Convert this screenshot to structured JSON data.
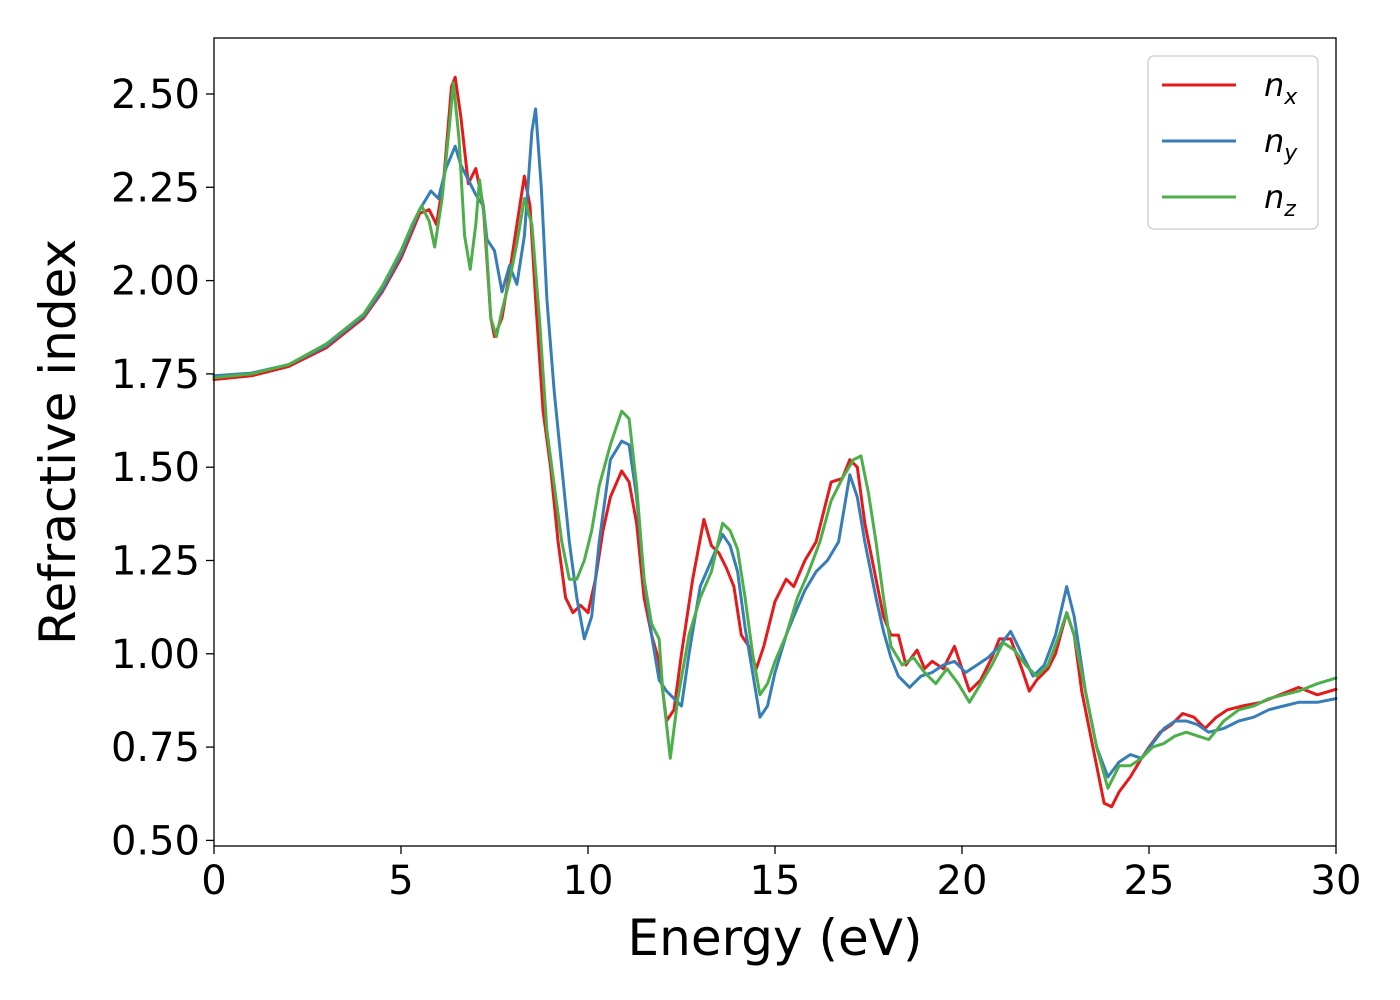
{
  "chart_data": {
    "type": "line",
    "title": "",
    "xlabel": "Energy (eV)",
    "ylabel": "Refractive index",
    "xlim": [
      0,
      30
    ],
    "ylim": [
      0.485,
      2.65
    ],
    "xticks": [
      "0",
      "5",
      "10",
      "15",
      "20",
      "25",
      "30"
    ],
    "yticks": [
      "0.50",
      "0.75",
      "1.00",
      "1.25",
      "1.50",
      "1.75",
      "2.00",
      "2.25",
      "2.50"
    ],
    "grid": false,
    "legend_position": "top-right",
    "series": [
      {
        "name": "n",
        "subscript": "x",
        "color": "#e41a1c",
        "points": [
          [
            0,
            1.735
          ],
          [
            1,
            1.745
          ],
          [
            2,
            1.77
          ],
          [
            3,
            1.82
          ],
          [
            4,
            1.9
          ],
          [
            4.5,
            1.97
          ],
          [
            5,
            2.06
          ],
          [
            5.5,
            2.18
          ],
          [
            5.75,
            2.19
          ],
          [
            5.95,
            2.15
          ],
          [
            6.15,
            2.28
          ],
          [
            6.35,
            2.52
          ],
          [
            6.45,
            2.545
          ],
          [
            6.6,
            2.44
          ],
          [
            6.8,
            2.26
          ],
          [
            7.0,
            2.3
          ],
          [
            7.2,
            2.2
          ],
          [
            7.4,
            1.9
          ],
          [
            7.5,
            1.85
          ],
          [
            7.7,
            1.9
          ],
          [
            7.9,
            2.02
          ],
          [
            8.1,
            2.15
          ],
          [
            8.3,
            2.28
          ],
          [
            8.45,
            2.2
          ],
          [
            8.6,
            1.95
          ],
          [
            8.8,
            1.65
          ],
          [
            9.0,
            1.5
          ],
          [
            9.2,
            1.3
          ],
          [
            9.4,
            1.15
          ],
          [
            9.6,
            1.11
          ],
          [
            9.8,
            1.13
          ],
          [
            10.0,
            1.11
          ],
          [
            10.2,
            1.2
          ],
          [
            10.4,
            1.33
          ],
          [
            10.6,
            1.42
          ],
          [
            10.9,
            1.49
          ],
          [
            11.1,
            1.46
          ],
          [
            11.3,
            1.35
          ],
          [
            11.5,
            1.15
          ],
          [
            11.7,
            1.05
          ],
          [
            11.9,
            0.98
          ],
          [
            12.1,
            0.82
          ],
          [
            12.3,
            0.85
          ],
          [
            12.5,
            1.0
          ],
          [
            12.8,
            1.2
          ],
          [
            13.1,
            1.36
          ],
          [
            13.3,
            1.29
          ],
          [
            13.5,
            1.27
          ],
          [
            13.7,
            1.23
          ],
          [
            13.9,
            1.18
          ],
          [
            14.1,
            1.05
          ],
          [
            14.3,
            1.02
          ],
          [
            14.5,
            0.96
          ],
          [
            14.7,
            1.02
          ],
          [
            15.0,
            1.14
          ],
          [
            15.3,
            1.2
          ],
          [
            15.5,
            1.18
          ],
          [
            15.8,
            1.25
          ],
          [
            16.1,
            1.3
          ],
          [
            16.5,
            1.46
          ],
          [
            16.8,
            1.47
          ],
          [
            17.0,
            1.52
          ],
          [
            17.2,
            1.5
          ],
          [
            17.4,
            1.35
          ],
          [
            17.7,
            1.2
          ],
          [
            17.9,
            1.1
          ],
          [
            18.1,
            1.05
          ],
          [
            18.3,
            1.05
          ],
          [
            18.5,
            0.97
          ],
          [
            18.8,
            1.01
          ],
          [
            19.0,
            0.96
          ],
          [
            19.2,
            0.98
          ],
          [
            19.5,
            0.96
          ],
          [
            19.8,
            1.02
          ],
          [
            20.0,
            0.96
          ],
          [
            20.2,
            0.9
          ],
          [
            20.5,
            0.93
          ],
          [
            20.8,
            0.99
          ],
          [
            21.0,
            1.04
          ],
          [
            21.3,
            1.04
          ],
          [
            21.6,
            0.96
          ],
          [
            21.8,
            0.9
          ],
          [
            22.0,
            0.93
          ],
          [
            22.3,
            0.96
          ],
          [
            22.5,
            1.0
          ],
          [
            22.8,
            1.11
          ],
          [
            23.0,
            1.05
          ],
          [
            23.2,
            0.9
          ],
          [
            23.5,
            0.75
          ],
          [
            23.8,
            0.6
          ],
          [
            24.0,
            0.59
          ],
          [
            24.2,
            0.63
          ],
          [
            24.5,
            0.67
          ],
          [
            24.8,
            0.72
          ],
          [
            25.0,
            0.75
          ],
          [
            25.3,
            0.79
          ],
          [
            25.6,
            0.81
          ],
          [
            25.9,
            0.84
          ],
          [
            26.2,
            0.83
          ],
          [
            26.5,
            0.8
          ],
          [
            26.8,
            0.83
          ],
          [
            27.1,
            0.85
          ],
          [
            27.5,
            0.86
          ],
          [
            28.0,
            0.87
          ],
          [
            28.5,
            0.89
          ],
          [
            29.0,
            0.91
          ],
          [
            29.5,
            0.89
          ],
          [
            30.0,
            0.905
          ]
        ]
      },
      {
        "name": "n",
        "subscript": "y",
        "color": "#377eb8",
        "points": [
          [
            0,
            1.745
          ],
          [
            1,
            1.752
          ],
          [
            2,
            1.775
          ],
          [
            3,
            1.825
          ],
          [
            4,
            1.905
          ],
          [
            4.5,
            1.975
          ],
          [
            5,
            2.07
          ],
          [
            5.5,
            2.19
          ],
          [
            5.8,
            2.24
          ],
          [
            6.0,
            2.22
          ],
          [
            6.2,
            2.3
          ],
          [
            6.45,
            2.36
          ],
          [
            6.6,
            2.31
          ],
          [
            6.8,
            2.27
          ],
          [
            7.0,
            2.23
          ],
          [
            7.2,
            2.2
          ],
          [
            7.3,
            2.11
          ],
          [
            7.5,
            2.08
          ],
          [
            7.7,
            1.97
          ],
          [
            7.9,
            2.04
          ],
          [
            8.1,
            1.99
          ],
          [
            8.3,
            2.12
          ],
          [
            8.5,
            2.4
          ],
          [
            8.6,
            2.46
          ],
          [
            8.75,
            2.25
          ],
          [
            8.9,
            1.95
          ],
          [
            9.1,
            1.7
          ],
          [
            9.3,
            1.5
          ],
          [
            9.5,
            1.3
          ],
          [
            9.7,
            1.15
          ],
          [
            9.9,
            1.04
          ],
          [
            10.1,
            1.1
          ],
          [
            10.3,
            1.3
          ],
          [
            10.6,
            1.52
          ],
          [
            10.9,
            1.57
          ],
          [
            11.1,
            1.56
          ],
          [
            11.3,
            1.42
          ],
          [
            11.5,
            1.2
          ],
          [
            11.7,
            1.05
          ],
          [
            11.9,
            0.93
          ],
          [
            12.1,
            0.9
          ],
          [
            12.3,
            0.88
          ],
          [
            12.5,
            0.86
          ],
          [
            12.7,
            1.0
          ],
          [
            13.0,
            1.18
          ],
          [
            13.3,
            1.25
          ],
          [
            13.6,
            1.32
          ],
          [
            13.8,
            1.29
          ],
          [
            14.0,
            1.22
          ],
          [
            14.2,
            1.07
          ],
          [
            14.4,
            0.95
          ],
          [
            14.6,
            0.83
          ],
          [
            14.8,
            0.86
          ],
          [
            15.0,
            0.95
          ],
          [
            15.3,
            1.05
          ],
          [
            15.5,
            1.1
          ],
          [
            15.8,
            1.17
          ],
          [
            16.1,
            1.22
          ],
          [
            16.4,
            1.25
          ],
          [
            16.7,
            1.3
          ],
          [
            17.0,
            1.48
          ],
          [
            17.2,
            1.42
          ],
          [
            17.4,
            1.3
          ],
          [
            17.7,
            1.15
          ],
          [
            17.9,
            1.06
          ],
          [
            18.1,
            0.99
          ],
          [
            18.3,
            0.94
          ],
          [
            18.6,
            0.91
          ],
          [
            18.9,
            0.94
          ],
          [
            19.2,
            0.95
          ],
          [
            19.5,
            0.97
          ],
          [
            19.8,
            0.98
          ],
          [
            20.1,
            0.95
          ],
          [
            20.4,
            0.97
          ],
          [
            20.7,
            0.99
          ],
          [
            21.0,
            1.02
          ],
          [
            21.3,
            1.06
          ],
          [
            21.6,
            1.0
          ],
          [
            21.9,
            0.94
          ],
          [
            22.2,
            0.97
          ],
          [
            22.5,
            1.05
          ],
          [
            22.8,
            1.18
          ],
          [
            23.0,
            1.1
          ],
          [
            23.3,
            0.9
          ],
          [
            23.6,
            0.75
          ],
          [
            23.9,
            0.67
          ],
          [
            24.2,
            0.71
          ],
          [
            24.5,
            0.73
          ],
          [
            24.8,
            0.72
          ],
          [
            25.1,
            0.76
          ],
          [
            25.4,
            0.8
          ],
          [
            25.7,
            0.82
          ],
          [
            26.0,
            0.82
          ],
          [
            26.3,
            0.81
          ],
          [
            26.6,
            0.79
          ],
          [
            27.0,
            0.8
          ],
          [
            27.4,
            0.82
          ],
          [
            27.8,
            0.83
          ],
          [
            28.2,
            0.85
          ],
          [
            28.6,
            0.86
          ],
          [
            29.0,
            0.87
          ],
          [
            29.5,
            0.87
          ],
          [
            30.0,
            0.88
          ]
        ]
      },
      {
        "name": "n",
        "subscript": "z",
        "color": "#4daf4a",
        "points": [
          [
            0,
            1.74
          ],
          [
            1,
            1.75
          ],
          [
            2,
            1.775
          ],
          [
            3,
            1.83
          ],
          [
            4,
            1.91
          ],
          [
            4.5,
            1.985
          ],
          [
            5,
            2.08
          ],
          [
            5.3,
            2.15
          ],
          [
            5.55,
            2.2
          ],
          [
            5.75,
            2.16
          ],
          [
            5.9,
            2.09
          ],
          [
            6.1,
            2.22
          ],
          [
            6.3,
            2.42
          ],
          [
            6.4,
            2.53
          ],
          [
            6.55,
            2.38
          ],
          [
            6.7,
            2.12
          ],
          [
            6.85,
            2.03
          ],
          [
            7.0,
            2.15
          ],
          [
            7.1,
            2.27
          ],
          [
            7.25,
            2.15
          ],
          [
            7.4,
            1.9
          ],
          [
            7.55,
            1.85
          ],
          [
            7.7,
            1.92
          ],
          [
            7.9,
            2.0
          ],
          [
            8.1,
            2.1
          ],
          [
            8.3,
            2.22
          ],
          [
            8.5,
            2.15
          ],
          [
            8.7,
            1.9
          ],
          [
            8.9,
            1.6
          ],
          [
            9.1,
            1.45
          ],
          [
            9.3,
            1.3
          ],
          [
            9.5,
            1.2
          ],
          [
            9.7,
            1.2
          ],
          [
            9.9,
            1.25
          ],
          [
            10.1,
            1.33
          ],
          [
            10.3,
            1.45
          ],
          [
            10.6,
            1.56
          ],
          [
            10.9,
            1.65
          ],
          [
            11.1,
            1.63
          ],
          [
            11.3,
            1.45
          ],
          [
            11.5,
            1.2
          ],
          [
            11.7,
            1.08
          ],
          [
            11.9,
            1.04
          ],
          [
            12.0,
            0.9
          ],
          [
            12.2,
            0.72
          ],
          [
            12.4,
            0.88
          ],
          [
            12.7,
            1.05
          ],
          [
            13.0,
            1.15
          ],
          [
            13.3,
            1.22
          ],
          [
            13.6,
            1.35
          ],
          [
            13.8,
            1.33
          ],
          [
            14.0,
            1.28
          ],
          [
            14.2,
            1.15
          ],
          [
            14.4,
            1.0
          ],
          [
            14.6,
            0.89
          ],
          [
            14.8,
            0.92
          ],
          [
            15.0,
            0.98
          ],
          [
            15.3,
            1.05
          ],
          [
            15.6,
            1.15
          ],
          [
            15.9,
            1.22
          ],
          [
            16.2,
            1.3
          ],
          [
            16.5,
            1.41
          ],
          [
            16.8,
            1.47
          ],
          [
            17.1,
            1.52
          ],
          [
            17.3,
            1.53
          ],
          [
            17.5,
            1.43
          ],
          [
            17.7,
            1.3
          ],
          [
            17.9,
            1.15
          ],
          [
            18.1,
            1.02
          ],
          [
            18.4,
            0.97
          ],
          [
            18.7,
            0.99
          ],
          [
            19.0,
            0.95
          ],
          [
            19.3,
            0.92
          ],
          [
            19.6,
            0.96
          ],
          [
            19.9,
            0.92
          ],
          [
            20.2,
            0.87
          ],
          [
            20.5,
            0.92
          ],
          [
            20.8,
            0.97
          ],
          [
            21.1,
            1.03
          ],
          [
            21.4,
            1.01
          ],
          [
            21.7,
            0.97
          ],
          [
            22.0,
            0.94
          ],
          [
            22.3,
            0.97
          ],
          [
            22.6,
            1.05
          ],
          [
            22.8,
            1.11
          ],
          [
            23.0,
            1.05
          ],
          [
            23.3,
            0.9
          ],
          [
            23.6,
            0.75
          ],
          [
            23.9,
            0.64
          ],
          [
            24.2,
            0.7
          ],
          [
            24.5,
            0.7
          ],
          [
            24.8,
            0.72
          ],
          [
            25.1,
            0.75
          ],
          [
            25.4,
            0.76
          ],
          [
            25.7,
            0.78
          ],
          [
            26.0,
            0.79
          ],
          [
            26.3,
            0.78
          ],
          [
            26.6,
            0.77
          ],
          [
            27.0,
            0.82
          ],
          [
            27.4,
            0.85
          ],
          [
            27.8,
            0.86
          ],
          [
            28.2,
            0.88
          ],
          [
            28.6,
            0.89
          ],
          [
            29.0,
            0.9
          ],
          [
            29.5,
            0.92
          ],
          [
            30.0,
            0.935
          ]
        ]
      }
    ]
  }
}
